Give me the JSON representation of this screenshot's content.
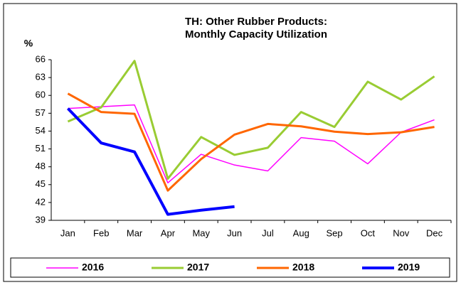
{
  "chart_data": {
    "type": "line",
    "title": [
      "TH: Other Rubber Products:",
      "Monthly Capacity Utilization"
    ],
    "y_label": "%",
    "categories": [
      "Jan",
      "Feb",
      "Mar",
      "Apr",
      "May",
      "Jun",
      "Jul",
      "Aug",
      "Sep",
      "Oct",
      "Nov",
      "Dec"
    ],
    "series": [
      {
        "name": "2016",
        "color": "#ff00ff",
        "width": 1.5,
        "values": [
          57.8,
          58.1,
          58.4,
          45.3,
          50.1,
          48.3,
          47.3,
          52.9,
          52.3,
          48.5,
          53.8,
          55.9
        ]
      },
      {
        "name": "2017",
        "color": "#99cc33",
        "width": 3,
        "values": [
          55.6,
          58.0,
          65.8,
          46.0,
          53.0,
          50.0,
          51.2,
          57.2,
          54.7,
          62.3,
          59.3,
          63.2
        ]
      },
      {
        "name": "2018",
        "color": "#ff6600",
        "width": 3,
        "values": [
          60.3,
          57.2,
          56.9,
          44.0,
          49.3,
          53.4,
          55.2,
          54.8,
          53.9,
          53.5,
          53.8,
          54.7
        ]
      },
      {
        "name": "2019",
        "color": "#0000ff",
        "width": 4,
        "values": [
          57.8,
          52.0,
          50.5,
          40.0,
          40.7,
          41.3,
          null,
          null,
          null,
          null,
          null,
          null
        ]
      }
    ],
    "ylim": [
      39,
      66
    ],
    "yticks": [
      39,
      42,
      45,
      48,
      51,
      54,
      57,
      60,
      63,
      66
    ],
    "grid": false,
    "legend": "bottom"
  }
}
